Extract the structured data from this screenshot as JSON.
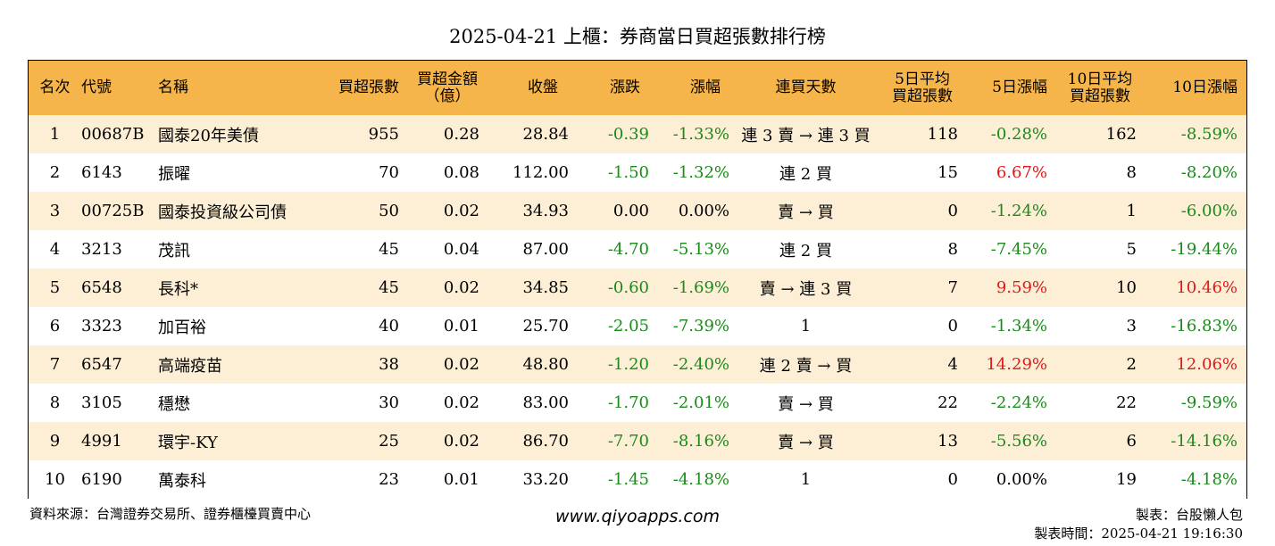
{
  "title": "2025-04-21 上櫃：券商當日買超張數排行榜",
  "headers": {
    "rank": "名次",
    "code": "代號",
    "name": "名稱",
    "net_buy_lots": "買超張數",
    "net_buy_amount_1": "買超金額",
    "net_buy_amount_2": "（億）",
    "close": "收盤",
    "change": "漲跌",
    "change_pct": "漲幅",
    "consec_days": "連買天數",
    "avg5_1": "5日平均",
    "avg5_2": "買超張數",
    "pct5": "5日漲幅",
    "avg10_1": "10日平均",
    "avg10_2": "買超張數",
    "pct10": "10日漲幅"
  },
  "rows": [
    {
      "rank": "1",
      "code": "00687B",
      "name": "國泰20年美債",
      "lots": "955",
      "amount": "0.28",
      "close": "28.84",
      "change": "-0.39",
      "change_pct": "-1.33%",
      "days": "連 3 賣 → 連 3 買",
      "avg5": "118",
      "pct5": "-0.28%",
      "avg10": "162",
      "pct10": "-8.59%"
    },
    {
      "rank": "2",
      "code": "6143",
      "name": "振曜",
      "lots": "70",
      "amount": "0.08",
      "close": "112.00",
      "change": "-1.50",
      "change_pct": "-1.32%",
      "days": "連 2 買",
      "avg5": "15",
      "pct5": "6.67%",
      "avg10": "8",
      "pct10": "-8.20%"
    },
    {
      "rank": "3",
      "code": "00725B",
      "name": "國泰投資級公司債",
      "lots": "50",
      "amount": "0.02",
      "close": "34.93",
      "change": "0.00",
      "change_pct": "0.00%",
      "days": "賣 → 買",
      "avg5": "0",
      "pct5": "-1.24%",
      "avg10": "1",
      "pct10": "-6.00%"
    },
    {
      "rank": "4",
      "code": "3213",
      "name": "茂訊",
      "lots": "45",
      "amount": "0.04",
      "close": "87.00",
      "change": "-4.70",
      "change_pct": "-5.13%",
      "days": "連 2 買",
      "avg5": "8",
      "pct5": "-7.45%",
      "avg10": "5",
      "pct10": "-19.44%"
    },
    {
      "rank": "5",
      "code": "6548",
      "name": "長科*",
      "lots": "45",
      "amount": "0.02",
      "close": "34.85",
      "change": "-0.60",
      "change_pct": "-1.69%",
      "days": "賣 → 連 3 買",
      "avg5": "7",
      "pct5": "9.59%",
      "avg10": "10",
      "pct10": "10.46%"
    },
    {
      "rank": "6",
      "code": "3323",
      "name": "加百裕",
      "lots": "40",
      "amount": "0.01",
      "close": "25.70",
      "change": "-2.05",
      "change_pct": "-7.39%",
      "days": "1",
      "avg5": "0",
      "pct5": "-1.34%",
      "avg10": "3",
      "pct10": "-16.83%"
    },
    {
      "rank": "7",
      "code": "6547",
      "name": "高端疫苗",
      "lots": "38",
      "amount": "0.02",
      "close": "48.80",
      "change": "-1.20",
      "change_pct": "-2.40%",
      "days": "連 2 賣 → 買",
      "avg5": "4",
      "pct5": "14.29%",
      "avg10": "2",
      "pct10": "12.06%"
    },
    {
      "rank": "8",
      "code": "3105",
      "name": "穩懋",
      "lots": "30",
      "amount": "0.02",
      "close": "83.00",
      "change": "-1.70",
      "change_pct": "-2.01%",
      "days": "賣 → 買",
      "avg5": "22",
      "pct5": "-2.24%",
      "avg10": "22",
      "pct10": "-9.59%"
    },
    {
      "rank": "9",
      "code": "4991",
      "name": "環宇-KY",
      "lots": "25",
      "amount": "0.02",
      "close": "86.70",
      "change": "-7.70",
      "change_pct": "-8.16%",
      "days": "賣 → 買",
      "avg5": "13",
      "pct5": "-5.56%",
      "avg10": "6",
      "pct10": "-14.16%"
    },
    {
      "rank": "10",
      "code": "6190",
      "name": "萬泰科",
      "lots": "23",
      "amount": "0.01",
      "close": "33.20",
      "change": "-1.45",
      "change_pct": "-4.18%",
      "days": "1",
      "avg5": "0",
      "pct5": "0.00%",
      "avg10": "19",
      "pct10": "-4.18%"
    }
  ],
  "colors": {
    "header_bg": "#f5b54a",
    "stripe_bg": "#fcefd6",
    "negative": "#1a8a1a",
    "positive": "#e01818"
  },
  "footer": {
    "source": "資料來源：台灣證券交易所、證券櫃檯買賣中心",
    "site": "www.qiyoapps.com",
    "maker": "製表：台股懶人包",
    "time": "製表時間：2025-04-21 19:16:30"
  }
}
